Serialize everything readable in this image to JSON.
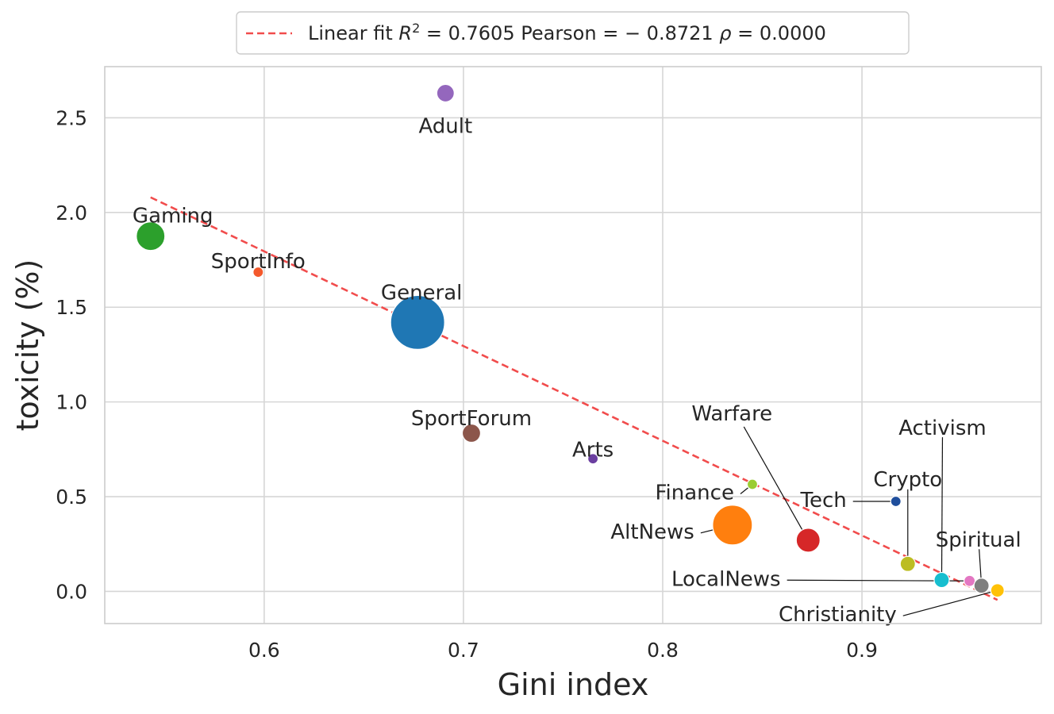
{
  "chart_data": {
    "type": "scatter",
    "title": "",
    "xlabel": "Gini index",
    "ylabel": "toxicity (%)",
    "xlim": [
      0.52,
      0.99
    ],
    "ylim": [
      -0.17,
      2.77
    ],
    "xticks": [
      0.6,
      0.7,
      0.8,
      0.9
    ],
    "xtick_labels": [
      "0.6",
      "0.7",
      "0.8",
      "0.9"
    ],
    "yticks": [
      0.0,
      0.5,
      1.0,
      1.5,
      2.0,
      2.5
    ],
    "ytick_labels": [
      "0.0",
      "0.5",
      "1.0",
      "1.5",
      "2.0",
      "2.5"
    ],
    "grid": true,
    "legend": {
      "position": "top-center",
      "prefix": "Linear fit ",
      "r2_label": "R",
      "r2_sup": "2",
      "r2_value": " = 0.7605 Pearson = − 0.8721 ",
      "rho_label": "ρ",
      "rho_value": " = 0.0000"
    },
    "fit_line": {
      "color": "#f14c4c",
      "x": [
        0.543,
        0.968
      ],
      "y": [
        2.08,
        -0.045
      ]
    },
    "points": [
      {
        "name": "General",
        "label": "General",
        "x": 0.677,
        "y": 1.42,
        "size": 34,
        "color": "#1f77b4"
      },
      {
        "name": "AltNews",
        "label": "AltNews",
        "x": 0.835,
        "y": 0.35,
        "size": 25,
        "color": "#ff7f0e"
      },
      {
        "name": "Gaming",
        "label": "Gaming",
        "x": 0.543,
        "y": 1.875,
        "size": 18,
        "color": "#2ca02c"
      },
      {
        "name": "Adult",
        "label": "Adult",
        "x": 0.691,
        "y": 2.63,
        "size": 11,
        "color": "#9467bd"
      },
      {
        "name": "SportInfo",
        "label": "SportInfo",
        "x": 0.597,
        "y": 1.685,
        "size": 6.5,
        "color": "#f4592c"
      },
      {
        "name": "SportForum",
        "label": "SportForum",
        "x": 0.704,
        "y": 0.835,
        "size": 11.5,
        "color": "#8c564b"
      },
      {
        "name": "Arts",
        "label": "Arts",
        "x": 0.765,
        "y": 0.7,
        "size": 6.5,
        "color": "#6b3fa0"
      },
      {
        "name": "Finance",
        "label": "Finance",
        "x": 0.845,
        "y": 0.565,
        "size": 6.5,
        "color": "#9acd32"
      },
      {
        "name": "Warfare",
        "label": "Warfare",
        "x": 0.873,
        "y": 0.27,
        "size": 15,
        "color": "#d62728"
      },
      {
        "name": "Tech",
        "label": "Tech",
        "x": 0.917,
        "y": 0.475,
        "size": 6.5,
        "color": "#1f4e9c"
      },
      {
        "name": "Crypto",
        "label": "Crypto",
        "x": 0.923,
        "y": 0.145,
        "size": 9.5,
        "color": "#bcbd22"
      },
      {
        "name": "Activism",
        "label": "Activism",
        "x": 0.94,
        "y": 0.06,
        "size": 9.5,
        "color": "#17becf"
      },
      {
        "name": "LocalNews",
        "label": "LocalNews",
        "x": 0.954,
        "y": 0.055,
        "size": 7,
        "color": "#e377c2"
      },
      {
        "name": "Spiritual",
        "label": "Spiritual",
        "x": 0.96,
        "y": 0.03,
        "size": 9.5,
        "color": "#7f7f7f"
      },
      {
        "name": "Christianity",
        "label": "Christianity",
        "x": 0.968,
        "y": 0.005,
        "size": 8.5,
        "color": "#ffc107"
      }
    ]
  }
}
